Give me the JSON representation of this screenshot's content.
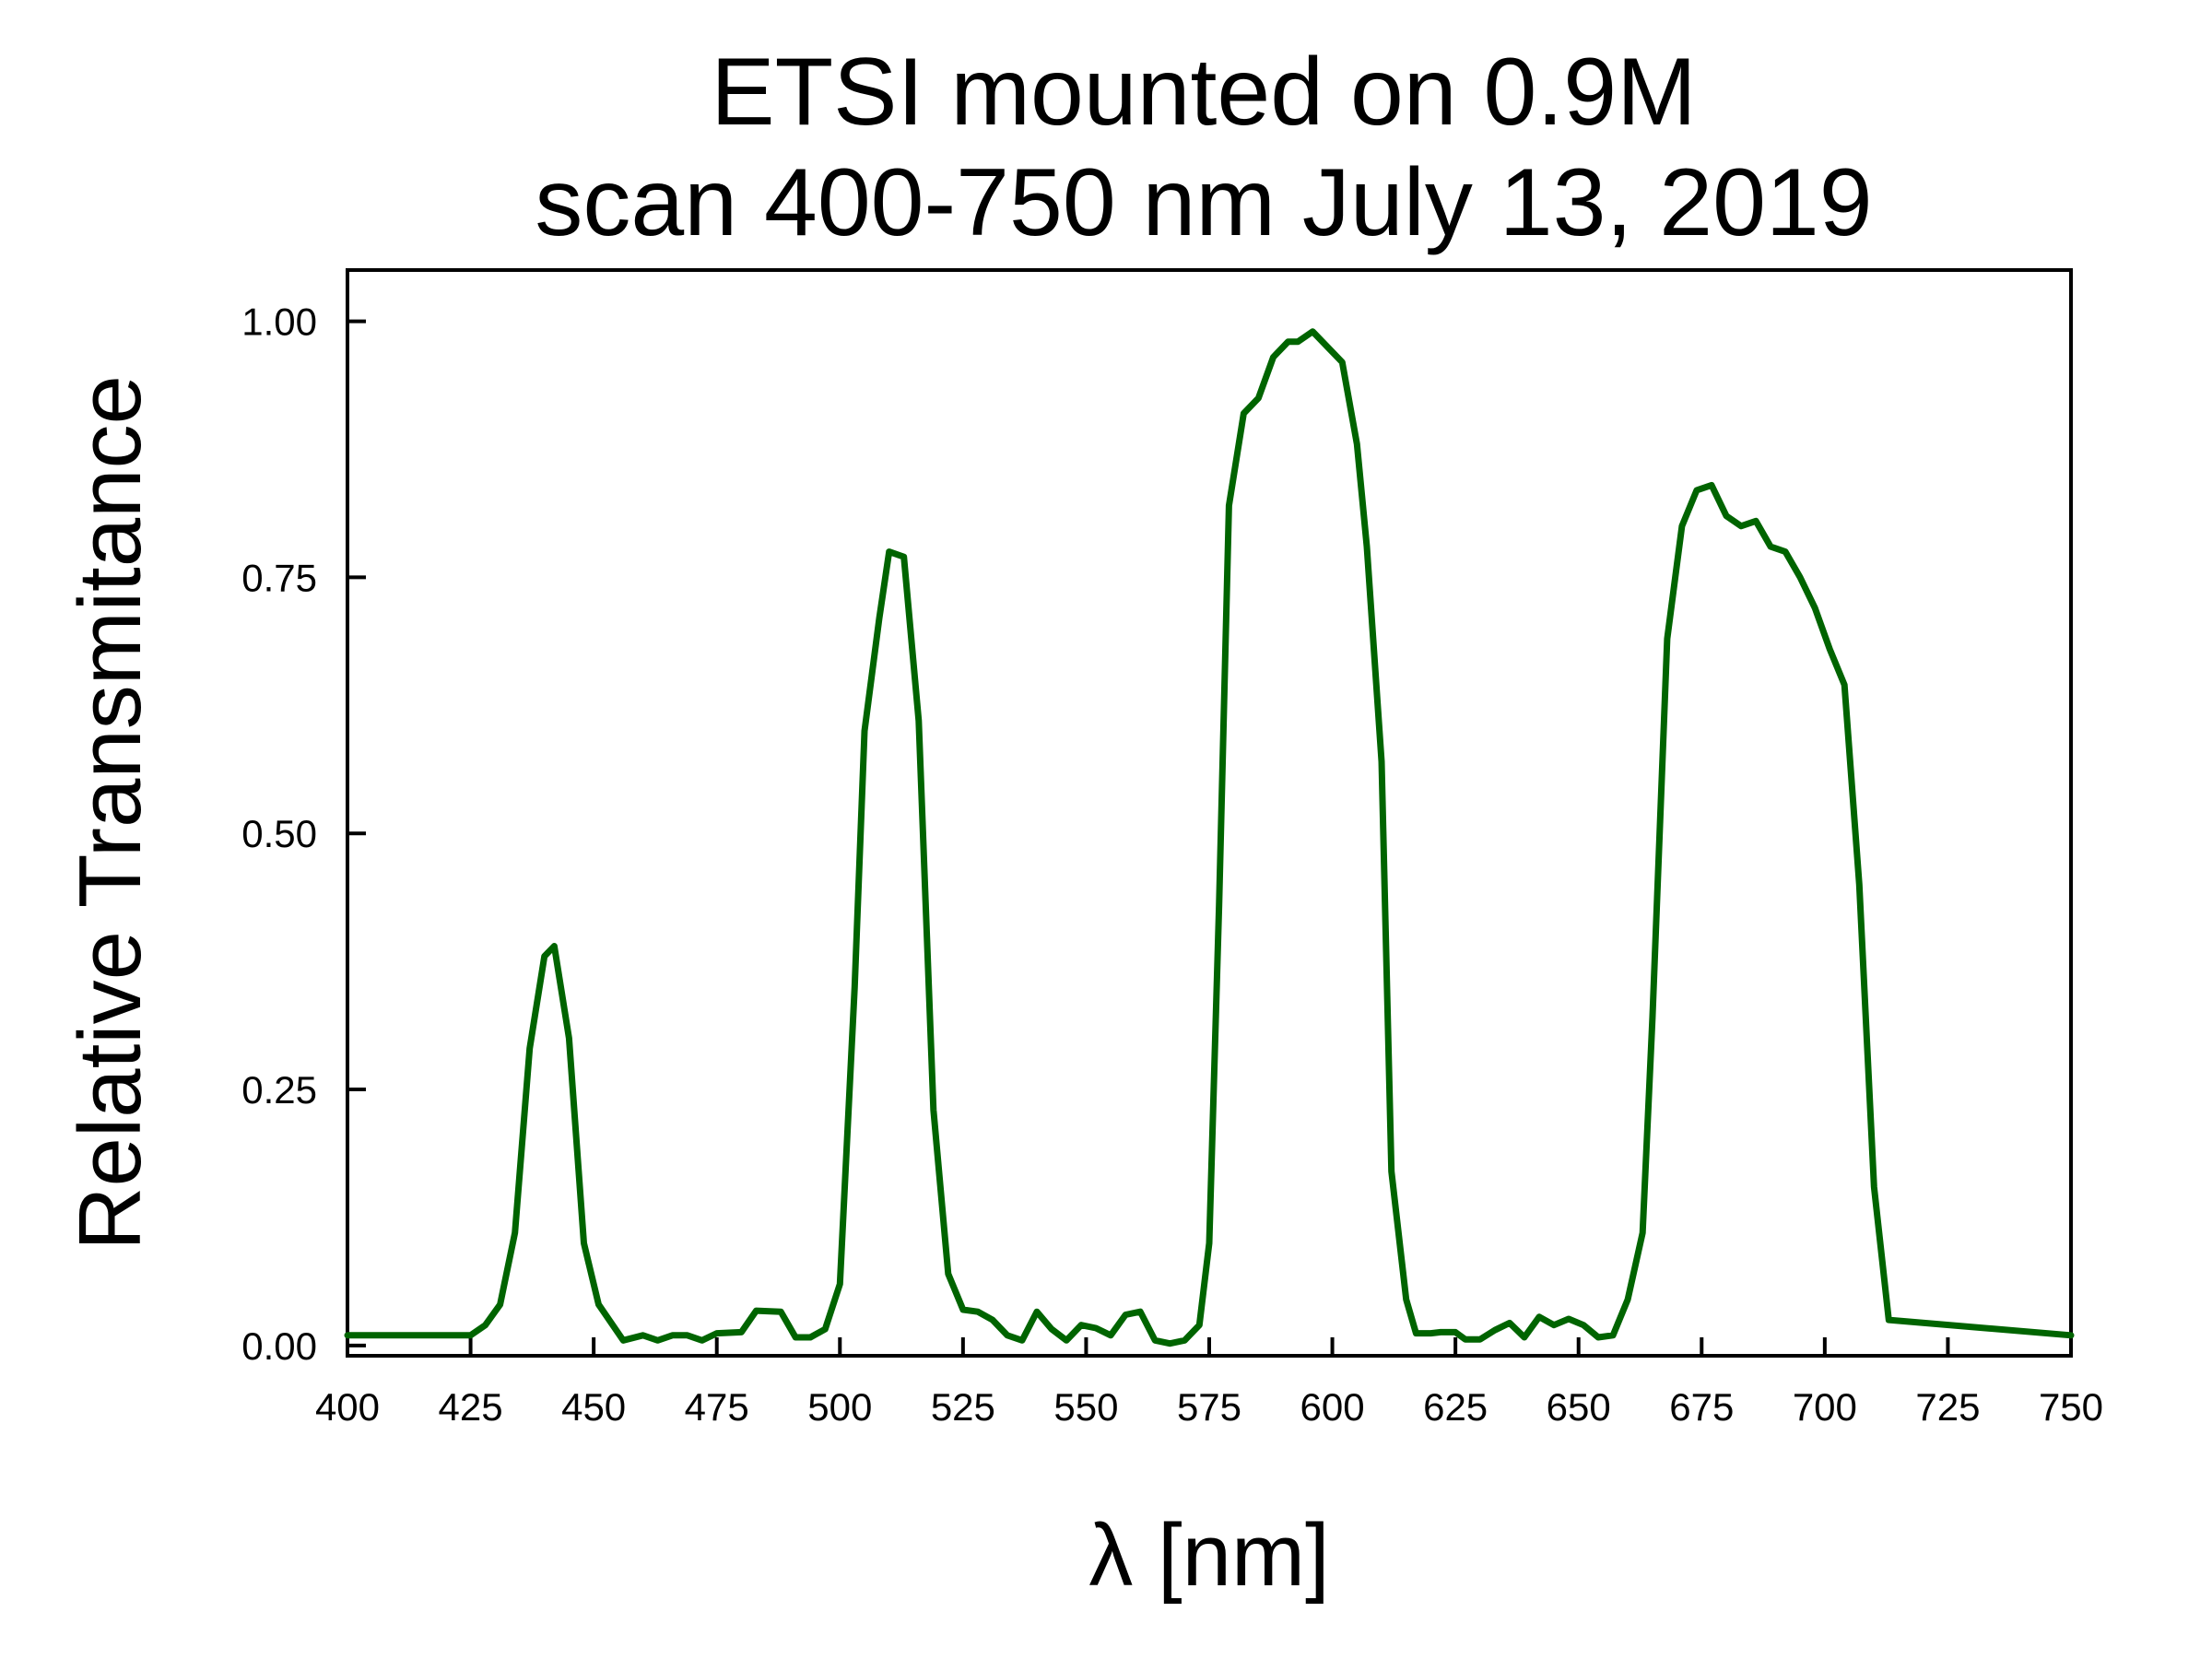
{
  "chart_data": {
    "type": "line",
    "title_lines": [
      "ETSI mounted on 0.9M",
      "scan 400-750 nm July 13, 2019"
    ],
    "xlabel": "λ [nm]",
    "ylabel": "Relative Transmitance",
    "xlim": [
      400,
      750
    ],
    "ylim": [
      -0.01,
      1.05
    ],
    "x_ticks": [
      400,
      425,
      450,
      475,
      500,
      525,
      550,
      575,
      600,
      625,
      650,
      675,
      700,
      725,
      750
    ],
    "y_ticks": [
      0.0,
      0.25,
      0.5,
      0.75,
      1.0
    ],
    "y_tick_labels": [
      "0.00",
      "0.25",
      "0.50",
      "0.75",
      "1.00"
    ],
    "grid": false,
    "legend": "none",
    "series": [
      {
        "color": "#006400",
        "x": [
          400,
          425,
          428,
          431,
          434,
          437,
          440,
          442,
          445,
          448,
          451,
          456,
          460,
          463,
          466,
          469,
          472,
          475,
          480,
          483,
          488,
          491,
          494,
          497,
          500,
          503,
          505,
          508,
          510,
          513,
          516,
          519,
          522,
          525,
          528,
          531,
          534,
          537,
          540,
          543,
          546,
          549,
          552,
          555,
          558,
          561,
          564,
          567,
          570,
          573,
          575,
          577,
          579,
          582,
          585,
          588,
          591,
          593,
          596,
          599,
          602,
          605,
          607,
          610,
          612,
          615,
          617,
          620,
          622,
          625,
          627,
          630,
          633,
          636,
          639,
          642,
          645,
          648,
          651,
          654,
          657,
          660,
          663,
          665,
          668,
          671,
          674,
          677,
          680,
          683,
          686,
          689,
          692,
          695,
          698,
          701,
          704,
          707,
          710,
          713,
          750
        ],
        "y": [
          0.01,
          0.01,
          0.02,
          0.04,
          0.11,
          0.29,
          0.38,
          0.39,
          0.3,
          0.1,
          0.04,
          0.005,
          0.01,
          0.005,
          0.01,
          0.01,
          0.005,
          0.012,
          0.013,
          0.034,
          0.033,
          0.008,
          0.008,
          0.016,
          0.06,
          0.35,
          0.6,
          0.71,
          0.775,
          0.77,
          0.61,
          0.23,
          0.07,
          0.035,
          0.033,
          0.025,
          0.01,
          0.005,
          0.033,
          0.016,
          0.005,
          0.02,
          0.017,
          0.01,
          0.03,
          0.033,
          0.005,
          0.002,
          0.005,
          0.02,
          0.1,
          0.43,
          0.82,
          0.91,
          0.925,
          0.965,
          0.98,
          0.98,
          0.99,
          0.975,
          0.96,
          0.88,
          0.78,
          0.57,
          0.17,
          0.045,
          0.012,
          0.012,
          0.013,
          0.013,
          0.006,
          0.006,
          0.015,
          0.022,
          0.008,
          0.028,
          0.02,
          0.026,
          0.02,
          0.008,
          0.01,
          0.045,
          0.11,
          0.32,
          0.69,
          0.8,
          0.835,
          0.84,
          0.81,
          0.8,
          0.805,
          0.78,
          0.775,
          0.75,
          0.72,
          0.68,
          0.645,
          0.45,
          0.155,
          0.025,
          0.01
        ]
      }
    ]
  }
}
